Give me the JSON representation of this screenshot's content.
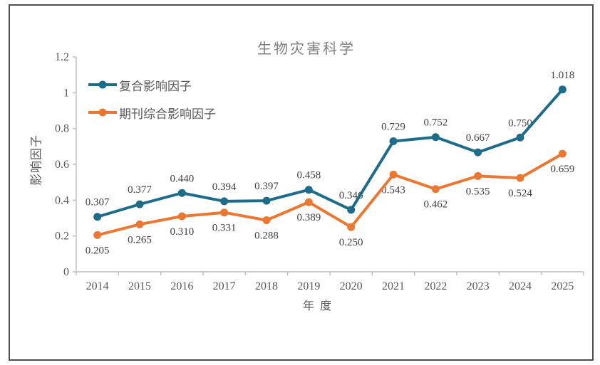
{
  "window": {
    "background": "#ffffff",
    "border_color": "#4f4f4f"
  },
  "chart_data": {
    "type": "line",
    "title": "生物灾害科学",
    "xlabel": "年 度",
    "ylabel": "影响因子",
    "categories": [
      "2014",
      "2015",
      "2016",
      "2017",
      "2018",
      "2019",
      "2020",
      "2021",
      "2022",
      "2023",
      "2024",
      "2025"
    ],
    "series": [
      {
        "name": "复合影响因子",
        "color": "#1f6c8a",
        "values": [
          0.307,
          0.377,
          0.44,
          0.394,
          0.397,
          0.458,
          0.346,
          0.729,
          0.752,
          0.667,
          0.75,
          1.018
        ],
        "labels": [
          "0.307",
          "0.377",
          "0.440",
          "0.394",
          "0.397",
          "0.458",
          "0.346",
          "0.729",
          "0.752",
          "0.667",
          "0.750",
          "1.018"
        ],
        "label_position": "above"
      },
      {
        "name": "期刊综合影响因子",
        "color": "#eb7832",
        "values": [
          0.205,
          0.265,
          0.31,
          0.331,
          0.288,
          0.389,
          0.25,
          0.543,
          0.462,
          0.535,
          0.524,
          0.659
        ],
        "labels": [
          "0.205",
          "0.265",
          "0.310",
          "0.331",
          "0.288",
          "0.389",
          "0.250",
          "0.543",
          "0.462",
          "0.535",
          "0.524",
          "0.659"
        ],
        "label_position": "below"
      }
    ],
    "ylim": [
      0,
      1.2
    ],
    "ytick_values": [
      0,
      0.2,
      0.4,
      0.6,
      0.8,
      1,
      1.2
    ],
    "ytick_labels": [
      "0",
      "0.2",
      "0.4",
      "0.6",
      "0.8",
      "1",
      "1.2"
    ],
    "grid": false,
    "legend_position": "top-left",
    "axis_color": "#bfbfbf",
    "text_color": "#595959",
    "datalabel_color": "#404040",
    "title_color": "#7f7f7f"
  }
}
